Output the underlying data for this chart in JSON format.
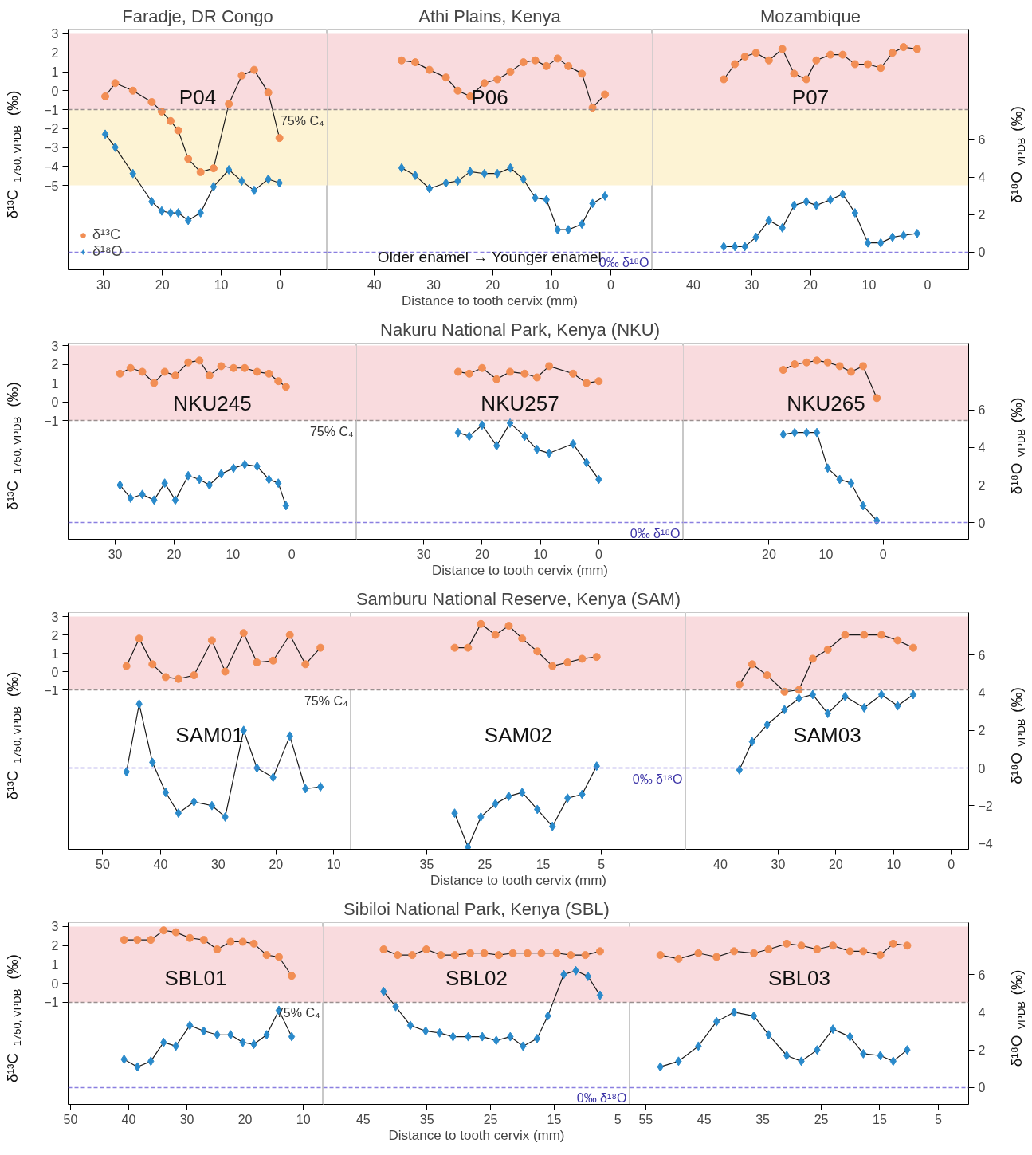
{
  "chart_data": [
    {
      "type": "line",
      "title": "Faradje, DR Congo",
      "ylabel": "δ¹³C$_{1750, VPDB}$ (‰)",
      "tick_labels": "xy",
      "legend": "bottom left",
      "xlim": [
        36,
        -8
      ],
      "xticks": [
        30,
        20,
        10,
        0
      ],
      "ylim": [
        -9.46,
        3.21
      ],
      "yticks": [
        -5,
        -4,
        -3,
        -2,
        -1,
        0,
        1,
        2,
        3
      ],
      "y2lim": [
        -0.94,
        11.87
      ],
      "x": [
        29.7,
        28.0,
        25.0,
        21.8,
        20.1,
        18.6,
        17.3,
        15.6,
        13.5,
        11.3,
        8.7,
        6.5,
        4.4,
        2.0,
        0.1
      ],
      "series": [
        {
          "name": "δ¹³C",
          "color": "#f28e54",
          "marker": "circle",
          "values": [
            -0.3,
            0.4,
            0.0,
            -0.6,
            -1.1,
            -1.6,
            -2.1,
            -3.6,
            -4.3,
            -4.1,
            -0.7,
            0.8,
            1.1,
            -0.1,
            -2.5
          ]
        },
        {
          "name": "δ¹⁸O",
          "color": "#2a8acb",
          "marker": "diamond",
          "axis": "y2",
          "values": [
            6.3,
            5.6,
            4.2,
            2.7,
            2.2,
            2.1,
            2.1,
            1.7,
            2.1,
            3.5,
            4.4,
            3.8,
            3.3,
            3.9,
            3.7
          ]
        }
      ],
      "bands": [
        {
          "axis": "y",
          "from": -1,
          "to": 3,
          "color": "#f9dbde"
        },
        {
          "axis": "y",
          "from": -5,
          "to": -1,
          "color": "#fdf3d4"
        }
      ],
      "ref_lines": [
        {
          "axis": "y",
          "value": -1,
          "label": "75% C₄",
          "color": "#9a8f8f",
          "line_style": "dashed"
        },
        {
          "axis": "y2",
          "value": 0,
          "color": "#8a7fe0",
          "line_style": "dashed"
        }
      ],
      "annotations": [
        "P04"
      ]
    },
    {
      "type": "line",
      "title": "Athi Plains, Kenya",
      "xlabel": "Distance to tooth cervix (mm)",
      "tick_labels": "x",
      "xlim": [
        48,
        -7
      ],
      "xticks": [
        40,
        30,
        20,
        10,
        0
      ],
      "ylim": [
        -9.46,
        3.21
      ],
      "y2lim": [
        -0.94,
        11.87
      ],
      "x": [
        35.4,
        33.1,
        30.7,
        27.9,
        25.9,
        23.8,
        21.4,
        19.2,
        17.0,
        14.8,
        12.8,
        10.9,
        9.0,
        7.2,
        4.9,
        3.1,
        1.0
      ],
      "series": [
        {
          "color": "#f28e54",
          "marker": "circle",
          "values": [
            1.6,
            1.5,
            1.1,
            0.7,
            0.0,
            -0.3,
            0.4,
            0.6,
            1.0,
            1.5,
            1.6,
            1.3,
            1.7,
            1.3,
            0.9,
            -0.9,
            -0.2
          ]
        },
        {
          "color": "#2a8acb",
          "marker": "diamond",
          "axis": "y2",
          "values": [
            4.5,
            4.1,
            3.4,
            3.7,
            3.8,
            4.3,
            4.2,
            4.2,
            4.5,
            3.9,
            2.9,
            2.8,
            1.2,
            1.2,
            1.5,
            2.6,
            3.0
          ]
        }
      ],
      "bands": [
        {
          "axis": "y",
          "from": -1,
          "to": 3,
          "color": "#f9dbde"
        },
        {
          "axis": "y",
          "from": -5,
          "to": -1,
          "color": "#fdf3d4"
        }
      ],
      "ref_lines": [
        {
          "axis": "y",
          "value": -1,
          "color": "#9a8f8f",
          "line_style": "dashed"
        },
        {
          "axis": "y2",
          "value": 0,
          "label": "0‰ δ¹⁸O",
          "color": "#8a7fe0",
          "line_style": "dashed"
        }
      ],
      "annotations": [
        "P06",
        "Older enamel → Younger enamel"
      ]
    },
    {
      "type": "line",
      "title": "Mozambique",
      "y2label": "δ¹⁸O$_{VPDB}$ (‰)",
      "tick_labels": "xy2",
      "xlim": [
        47,
        -7
      ],
      "xticks": [
        40,
        30,
        20,
        10,
        0
      ],
      "ylim": [
        -9.46,
        3.21
      ],
      "y2lim": [
        -0.94,
        11.87
      ],
      "y2ticks": [
        0,
        2,
        4,
        6
      ],
      "x": [
        34.8,
        32.9,
        31.2,
        29.3,
        27.1,
        24.8,
        22.8,
        20.7,
        19.0,
        16.6,
        14.5,
        12.4,
        10.2,
        8.0,
        6.0,
        4.1,
        1.8
      ],
      "series": [
        {
          "color": "#f28e54",
          "marker": "circle",
          "values": [
            0.6,
            1.4,
            1.8,
            2.0,
            1.6,
            2.2,
            0.9,
            0.6,
            1.6,
            1.9,
            1.9,
            1.4,
            1.4,
            1.2,
            2.0,
            2.3,
            2.2
          ]
        },
        {
          "color": "#2a8acb",
          "marker": "diamond",
          "axis": "y2",
          "values": [
            0.3,
            0.3,
            0.3,
            0.8,
            1.7,
            1.3,
            2.5,
            2.7,
            2.5,
            2.8,
            3.1,
            2.1,
            0.5,
            0.5,
            0.8,
            0.9,
            1.0
          ]
        }
      ],
      "bands": [
        {
          "axis": "y",
          "from": -1,
          "to": 3,
          "color": "#f9dbde"
        },
        {
          "axis": "y",
          "from": -5,
          "to": -1,
          "color": "#fdf3d4"
        }
      ],
      "ref_lines": [
        {
          "axis": "y",
          "value": -1,
          "color": "#9a8f8f",
          "line_style": "dashed"
        },
        {
          "axis": "y2",
          "value": 0,
          "color": "#8a7fe0",
          "line_style": "dashed"
        }
      ],
      "annotations": [
        "P07"
      ]
    },
    {
      "type": "line",
      "ylabel": "δ¹³C$_{1750, VPDB}$ (‰)",
      "tick_labels": "xy",
      "xlim": [
        38,
        -11
      ],
      "xticks": [
        30,
        20,
        10,
        0
      ],
      "ylim": [
        -7.34,
        3.13
      ],
      "yticks": [
        -1,
        0,
        1,
        2,
        3
      ],
      "y2lim": [
        -0.89,
        9.57
      ],
      "x": [
        29.2,
        27.4,
        25.4,
        23.4,
        21.6,
        19.8,
        17.6,
        15.7,
        14.0,
        12.0,
        9.9,
        8.0,
        5.9,
        3.9,
        2.3,
        1.0
      ],
      "series": [
        {
          "color": "#f28e54",
          "marker": "circle",
          "values": [
            1.5,
            1.8,
            1.6,
            1.0,
            1.6,
            1.4,
            2.1,
            2.2,
            1.4,
            1.9,
            1.8,
            1.8,
            1.6,
            1.5,
            1.1,
            0.8
          ]
        },
        {
          "color": "#2a8acb",
          "marker": "diamond",
          "axis": "y2",
          "values": [
            2.0,
            1.3,
            1.5,
            1.2,
            2.1,
            1.2,
            2.5,
            2.3,
            2.0,
            2.6,
            2.9,
            3.1,
            3.0,
            2.3,
            2.1,
            0.9
          ]
        }
      ],
      "bands": [
        {
          "axis": "y",
          "from": -1,
          "to": 3,
          "color": "#f9dbde"
        }
      ],
      "ref_lines": [
        {
          "axis": "y",
          "value": -1,
          "label": "75% C₄",
          "color": "#9a8f8f",
          "line_style": "dashed"
        },
        {
          "axis": "y2",
          "value": 0,
          "color": "#8a7fe0",
          "line_style": "dashed"
        }
      ],
      "annotations": [
        "NKU245"
      ]
    },
    {
      "type": "line",
      "title": "Nakuru National Park, Kenya (NKU)",
      "xlabel": "Distance to tooth cervix (mm)",
      "tick_labels": "x",
      "xlim": [
        41.5,
        -14.5
      ],
      "xticks": [
        30,
        20,
        10,
        0
      ],
      "ylim": [
        -7.34,
        3.13
      ],
      "y2lim": [
        -0.89,
        9.57
      ],
      "x": [
        24.1,
        22.2,
        20.0,
        17.5,
        15.2,
        12.7,
        10.6,
        8.5,
        4.4,
        2.1,
        0.0
      ],
      "series": [
        {
          "color": "#f28e54",
          "marker": "circle",
          "values": [
            1.6,
            1.5,
            1.8,
            1.2,
            1.6,
            1.5,
            1.3,
            1.9,
            1.5,
            1.0,
            1.1
          ]
        },
        {
          "color": "#2a8acb",
          "marker": "diamond",
          "axis": "y2",
          "values": [
            4.8,
            4.6,
            5.2,
            4.1,
            5.3,
            4.6,
            3.9,
            3.7,
            4.2,
            3.2,
            2.3
          ]
        }
      ],
      "bands": [
        {
          "axis": "y",
          "from": -1,
          "to": 3,
          "color": "#f9dbde"
        }
      ],
      "ref_lines": [
        {
          "axis": "y",
          "value": -1,
          "color": "#9a8f8f",
          "line_style": "dashed"
        },
        {
          "axis": "y2",
          "value": 0,
          "label": "0‰ δ¹⁸O",
          "color": "#8a7fe0",
          "line_style": "dashed"
        }
      ],
      "annotations": [
        "NKU257"
      ]
    },
    {
      "type": "line",
      "y2label": "δ¹⁸O$_{VPDB}$ (‰)",
      "tick_labels": "xy2",
      "xlim": [
        35,
        -15
      ],
      "xticks": [
        20,
        10,
        0
      ],
      "ylim": [
        -7.34,
        3.13
      ],
      "y2lim": [
        -0.89,
        9.57
      ],
      "y2ticks": [
        0,
        2,
        4,
        6
      ],
      "x": [
        17.5,
        15.5,
        13.4,
        11.6,
        9.7,
        7.6,
        5.6,
        3.5,
        1.1
      ],
      "series": [
        {
          "color": "#f28e54",
          "marker": "circle",
          "values": [
            1.7,
            2.0,
            2.1,
            2.2,
            2.1,
            1.9,
            1.6,
            1.9,
            0.2
          ]
        },
        {
          "color": "#2a8acb",
          "marker": "diamond",
          "axis": "y2",
          "values": [
            4.7,
            4.8,
            4.8,
            4.8,
            2.9,
            2.3,
            2.1,
            0.9,
            0.1
          ]
        }
      ],
      "bands": [
        {
          "axis": "y",
          "from": -1,
          "to": 3,
          "color": "#f9dbde"
        }
      ],
      "ref_lines": [
        {
          "axis": "y",
          "value": -1,
          "color": "#9a8f8f",
          "line_style": "dashed"
        },
        {
          "axis": "y2",
          "value": 0,
          "color": "#8a7fe0",
          "line_style": "dashed"
        }
      ],
      "annotations": [
        "NKU265"
      ]
    },
    {
      "type": "line",
      "ylabel": "δ¹³C$_{1750, VPDB}$ (‰)",
      "tick_labels": "xy",
      "xlim": [
        56,
        7
      ],
      "xticks": [
        50,
        40,
        30,
        20,
        10
      ],
      "ylim": [
        -9.7,
        3.22
      ],
      "yticks": [
        -1,
        0,
        1,
        2,
        3
      ],
      "y2lim": [
        -4.32,
        8.26
      ],
      "x": [
        45.9,
        43.7,
        41.4,
        39.1,
        36.9,
        34.2,
        31.1,
        28.8,
        25.6,
        23.3,
        20.5,
        17.6,
        14.9,
        12.3
      ],
      "series": [
        {
          "color": "#f28e54",
          "marker": "circle",
          "values": [
            0.3,
            1.8,
            0.4,
            -0.3,
            -0.4,
            -0.2,
            1.7,
            0.0,
            2.1,
            0.5,
            0.6,
            2.0,
            0.4,
            1.3
          ]
        },
        {
          "color": "#2a8acb",
          "marker": "diamond",
          "axis": "y2",
          "values": [
            -0.2,
            3.4,
            0.3,
            -1.3,
            -2.4,
            -1.8,
            -2.0,
            -2.6,
            2.0,
            0.0,
            -0.5,
            1.7,
            -1.1,
            -1.0
          ]
        }
      ],
      "bands": [
        {
          "axis": "y",
          "from": -1,
          "to": 3,
          "color": "#f9dbde"
        }
      ],
      "ref_lines": [
        {
          "axis": "y",
          "value": -1,
          "label": "75% C₄",
          "color": "#9a8f8f",
          "line_style": "dashed"
        },
        {
          "axis": "y2",
          "value": 0,
          "color": "#8a7fe0",
          "line_style": "dashed"
        }
      ],
      "annotations": [
        "SAM01"
      ]
    },
    {
      "type": "line",
      "title": "Samburu National Reserve, Kenya (SAM)",
      "xlabel": "Distance to tooth cervix (mm)",
      "tick_labels": "x",
      "xlim": [
        48,
        -9.5
      ],
      "xticks": [
        35,
        25,
        15,
        5
      ],
      "ylim": [
        -9.7,
        3.22
      ],
      "y2lim": [
        -4.32,
        8.26
      ],
      "x": [
        30.2,
        27.9,
        25.7,
        23.2,
        20.9,
        18.6,
        16.0,
        13.4,
        10.8,
        8.3,
        5.8
      ],
      "series": [
        {
          "color": "#f28e54",
          "marker": "circle",
          "values": [
            1.3,
            1.3,
            2.6,
            2.0,
            2.5,
            1.8,
            1.1,
            0.3,
            0.5,
            0.7,
            0.8
          ]
        },
        {
          "color": "#2a8acb",
          "marker": "diamond",
          "axis": "y2",
          "values": [
            -2.4,
            -4.2,
            -2.6,
            -1.9,
            -1.5,
            -1.3,
            -2.2,
            -3.1,
            -1.6,
            -1.4,
            0.1
          ]
        }
      ],
      "bands": [
        {
          "axis": "y",
          "from": -1,
          "to": 3,
          "color": "#f9dbde"
        }
      ],
      "ref_lines": [
        {
          "axis": "y",
          "value": -1,
          "color": "#9a8f8f",
          "line_style": "dashed"
        },
        {
          "axis": "y2",
          "value": 0,
          "label": "0‰ δ¹⁸O",
          "color": "#8a7fe0",
          "line_style": "dashed"
        }
      ],
      "annotations": [
        "SAM02"
      ]
    },
    {
      "type": "line",
      "y2label": "δ¹⁸O$_{VPDB}$ (‰)",
      "tick_labels": "xy2",
      "xlim": [
        46,
        -3
      ],
      "xticks": [
        40,
        30,
        20,
        10,
        0
      ],
      "ylim": [
        -9.7,
        3.22
      ],
      "y2lim": [
        -4.32,
        8.26
      ],
      "y2ticks": [
        -4,
        -2,
        0,
        2,
        4,
        6
      ],
      "x": [
        36.7,
        34.5,
        31.9,
        28.9,
        26.4,
        24.0,
        21.4,
        18.4,
        15.1,
        12.1,
        9.3,
        6.6
      ],
      "series": [
        {
          "color": "#f28e54",
          "marker": "circle",
          "values": [
            -0.7,
            0.4,
            -0.2,
            -1.1,
            -1.0,
            0.7,
            1.2,
            2.0,
            2.0,
            2.0,
            1.7,
            1.3
          ]
        },
        {
          "color": "#2a8acb",
          "marker": "diamond",
          "axis": "y2",
          "values": [
            -0.1,
            1.4,
            2.3,
            3.1,
            3.7,
            3.9,
            2.9,
            3.8,
            3.2,
            3.9,
            3.3,
            3.9
          ]
        }
      ],
      "bands": [
        {
          "axis": "y",
          "from": -1,
          "to": 3,
          "color": "#f9dbde"
        }
      ],
      "ref_lines": [
        {
          "axis": "y",
          "value": -1,
          "color": "#9a8f8f",
          "line_style": "dashed"
        },
        {
          "axis": "y2",
          "value": 0,
          "color": "#8a7fe0",
          "line_style": "dashed"
        }
      ],
      "annotations": [
        "SAM03"
      ]
    },
    {
      "type": "line",
      "ylabel": "δ¹³C$_{1750, VPDB}$ (‰)",
      "tick_labels": "xy",
      "xlim": [
        50.4,
        6.6
      ],
      "xticks": [
        50,
        40,
        30,
        20,
        10
      ],
      "ylim": [
        -6.39,
        3.21
      ],
      "yticks": [
        -1,
        0,
        1,
        2,
        3
      ],
      "y2lim": [
        -0.89,
        8.75
      ],
      "x": [
        40.8,
        38.5,
        36.2,
        34.0,
        31.9,
        29.5,
        27.1,
        24.8,
        22.5,
        20.4,
        18.5,
        16.3,
        14.2,
        12.0
      ],
      "series": [
        {
          "color": "#f28e54",
          "marker": "circle",
          "values": [
            2.3,
            2.3,
            2.3,
            2.8,
            2.7,
            2.4,
            2.3,
            1.8,
            2.2,
            2.2,
            2.1,
            1.5,
            1.4,
            0.4
          ]
        },
        {
          "color": "#2a8acb",
          "marker": "diamond",
          "axis": "y2",
          "values": [
            1.5,
            1.1,
            1.4,
            2.4,
            2.2,
            3.3,
            3.0,
            2.8,
            2.8,
            2.4,
            2.3,
            2.8,
            4.1,
            2.7
          ]
        }
      ],
      "bands": [
        {
          "axis": "y",
          "from": -1,
          "to": 3,
          "color": "#f9dbde"
        }
      ],
      "ref_lines": [
        {
          "axis": "y",
          "value": -1,
          "label": "75% C₄",
          "color": "#9a8f8f",
          "line_style": "dashed"
        },
        {
          "axis": "y2",
          "value": 0,
          "color": "#8a7fe0",
          "line_style": "dashed"
        }
      ],
      "annotations": [
        "SBL01"
      ]
    },
    {
      "type": "line",
      "title": "Sibiloi National Park, Kenya (SBL)",
      "xlabel": "Distance to tooth cervix (mm)",
      "tick_labels": "x",
      "xlim": [
        51.3,
        3.1
      ],
      "xticks": [
        45,
        35,
        25,
        15,
        5
      ],
      "ylim": [
        -6.39,
        3.21
      ],
      "y2lim": [
        -0.89,
        8.75
      ],
      "series": [
        {
          "color": "#f28e54",
          "marker": "circle",
          "x": [
            41.8,
            39.6,
            37.3,
            35.1,
            32.8,
            30.6,
            28.2,
            26.0,
            23.7,
            21.5,
            19.2,
            17.0,
            14.6,
            12.4,
            10.1,
            7.8
          ],
          "values": [
            1.8,
            1.5,
            1.5,
            1.8,
            1.5,
            1.5,
            1.6,
            1.6,
            1.5,
            1.6,
            1.6,
            1.6,
            1.6,
            1.5,
            1.5,
            1.7
          ]
        },
        {
          "color": "#2a8acb",
          "marker": "diamond",
          "axis": "y2",
          "x": [
            41.8,
            39.9,
            37.6,
            35.2,
            33.0,
            30.9,
            28.5,
            26.3,
            24.1,
            21.9,
            19.9,
            17.7,
            16.0,
            13.5,
            11.6,
            9.7,
            7.8
          ],
          "values": [
            5.1,
            4.3,
            3.3,
            3.0,
            2.9,
            2.7,
            2.7,
            2.7,
            2.5,
            2.7,
            2.2,
            2.6,
            3.8,
            6.0,
            6.2,
            5.9,
            4.9
          ]
        }
      ],
      "bands": [
        {
          "axis": "y",
          "from": -1,
          "to": 3,
          "color": "#f9dbde"
        }
      ],
      "ref_lines": [
        {
          "axis": "y",
          "value": -1,
          "color": "#9a8f8f",
          "line_style": "dashed"
        },
        {
          "axis": "y2",
          "value": 0,
          "label": "0‰ δ¹⁸O",
          "color": "#8a7fe0",
          "line_style": "dashed"
        }
      ],
      "annotations": [
        "SBL02"
      ]
    },
    {
      "type": "line",
      "y2label": "δ¹⁸O$_{VPDB}$ (‰)",
      "tick_labels": "xy2",
      "xlim": [
        57.7,
        -0.2
      ],
      "xticks": [
        55,
        45,
        35,
        25,
        15,
        5
      ],
      "ylim": [
        -6.39,
        3.21
      ],
      "y2lim": [
        -0.89,
        8.75
      ],
      "y2ticks": [
        0,
        2,
        4,
        6
      ],
      "x": [
        52.5,
        49.4,
        46.0,
        42.9,
        39.9,
        36.5,
        34.0,
        30.9,
        28.4,
        25.7,
        23.0,
        20.1,
        17.8,
        14.9,
        12.7,
        10.3
      ],
      "series": [
        {
          "color": "#f28e54",
          "marker": "circle",
          "values": [
            1.5,
            1.3,
            1.6,
            1.4,
            1.7,
            1.6,
            1.8,
            2.1,
            2.0,
            1.8,
            2.0,
            1.7,
            1.7,
            1.5,
            2.1,
            2.0
          ]
        },
        {
          "color": "#2a8acb",
          "marker": "diamond",
          "axis": "y2",
          "values": [
            1.1,
            1.4,
            2.2,
            3.5,
            4.0,
            3.8,
            2.8,
            1.7,
            1.4,
            2.0,
            3.1,
            2.7,
            1.8,
            1.7,
            1.4,
            2.0
          ]
        }
      ],
      "bands": [
        {
          "axis": "y",
          "from": -1,
          "to": 3,
          "color": "#f9dbde"
        }
      ],
      "ref_lines": [
        {
          "axis": "y",
          "value": -1,
          "color": "#9a8f8f",
          "line_style": "dashed"
        },
        {
          "axis": "y2",
          "value": 0,
          "color": "#8a7fe0",
          "line_style": "dashed"
        }
      ],
      "annotations": [
        "SBL03"
      ]
    }
  ]
}
